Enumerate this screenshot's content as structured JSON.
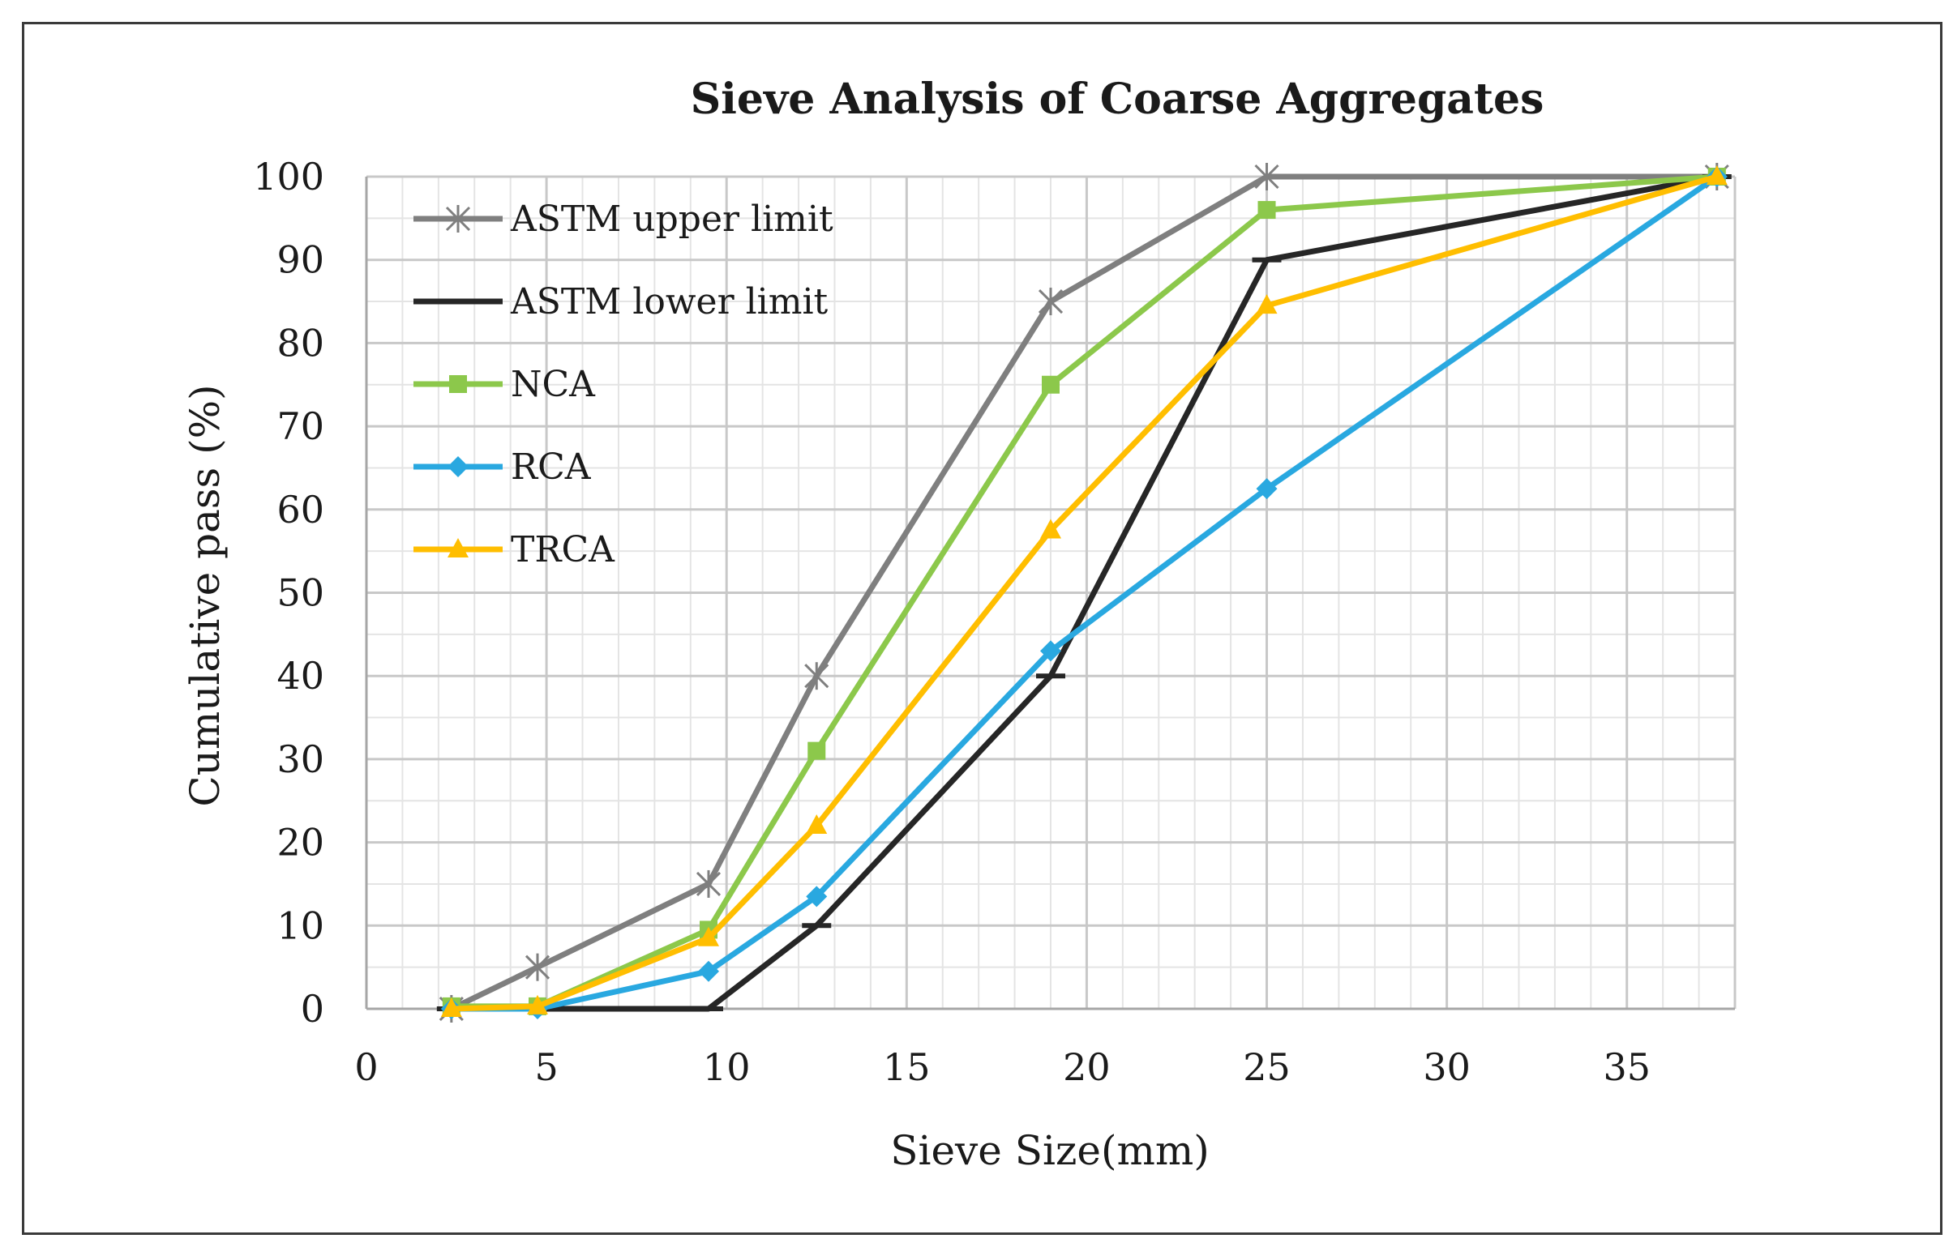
{
  "chart_data": {
    "type": "line",
    "title": "Sieve Analysis of Coarse Aggregates",
    "xlabel": "Sieve Size(mm)",
    "ylabel": "Cumulative pass (%)",
    "xlim": [
      0,
      38
    ],
    "ylim": [
      0,
      100
    ],
    "x_ticks": [
      0,
      5,
      10,
      15,
      20,
      25,
      30,
      35
    ],
    "y_ticks": [
      0,
      10,
      20,
      30,
      40,
      50,
      60,
      70,
      80,
      90,
      100
    ],
    "x_minor_step": 1,
    "y_minor_step": 5,
    "grid": true,
    "legend_position": "top-left",
    "series": [
      {
        "name": "ASTM upper limit",
        "color": "#7f7f7f",
        "marker": "star",
        "x": [
          2.36,
          4.75,
          9.5,
          12.5,
          19,
          25,
          37.5
        ],
        "y": [
          0,
          5,
          15,
          40,
          85,
          100,
          100
        ]
      },
      {
        "name": "ASTM lower limit",
        "color": "#262626",
        "marker": "dash",
        "x": [
          2.36,
          4.75,
          9.5,
          12.5,
          19,
          25,
          37.5
        ],
        "y": [
          0,
          0,
          0,
          10,
          40,
          90,
          100
        ]
      },
      {
        "name": "NCA",
        "color": "#8cc84b",
        "marker": "square",
        "x": [
          2.36,
          4.75,
          9.5,
          12.5,
          19,
          25,
          37.5
        ],
        "y": [
          0.3,
          0.3,
          9.5,
          31,
          75,
          96,
          100
        ]
      },
      {
        "name": "RCA",
        "color": "#29a8e0",
        "marker": "diamond",
        "x": [
          2.36,
          4.75,
          9.5,
          12.5,
          19,
          25,
          37.5
        ],
        "y": [
          0,
          0,
          4.5,
          13.5,
          43,
          62.5,
          100
        ]
      },
      {
        "name": "TRCA",
        "color": "#ffbe00",
        "marker": "triangle",
        "x": [
          2.36,
          4.75,
          9.5,
          12.5,
          19,
          25,
          37.5
        ],
        "y": [
          0,
          0.3,
          8.5,
          22,
          57.5,
          84.5,
          100
        ]
      }
    ]
  }
}
